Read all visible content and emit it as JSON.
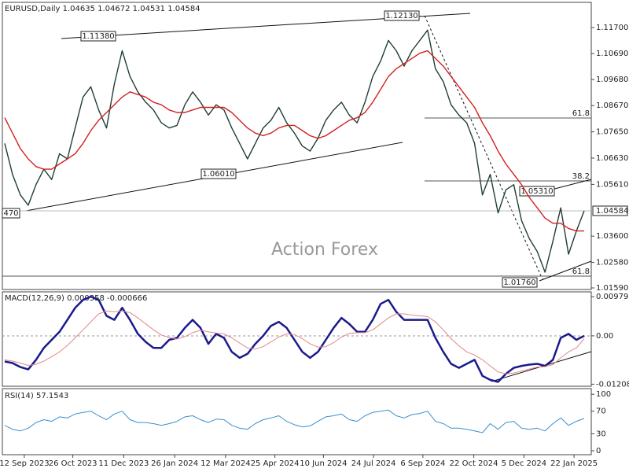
{
  "chart_data": [
    {
      "type": "line",
      "title": "EURUSD,Daily  1.04635 1.04672 1.04531 1.04584",
      "watermark": "Action Forex",
      "xlim": [
        -0.3,
        74.9
      ],
      "ylim": [
        1.01529,
        1.12677
      ],
      "yticks": [
        {
          "value": 1.117,
          "label": "1.11700"
        },
        {
          "value": 1.1069,
          "label": "1.10690"
        },
        {
          "value": 1.0968,
          "label": "1.09680"
        },
        {
          "value": 1.0867,
          "label": "1.08670"
        },
        {
          "value": 1.0765,
          "label": "1.07650"
        },
        {
          "value": 1.0663,
          "label": "1.06630"
        },
        {
          "value": 1.0561,
          "label": "1.05610"
        },
        {
          "value": 1.036,
          "label": "1.03600"
        },
        {
          "value": 1.0258,
          "label": "1.02580"
        },
        {
          "value": 1.0159,
          "label": "1.01590"
        }
      ],
      "last_price": {
        "value": 1.04584,
        "label": "1.04584"
      },
      "annotations": [
        "1.11380",
        "1.12130",
        "1.06010",
        "1.05310",
        "1.01760",
        "470",
        "61.8",
        "38.2",
        "61.8"
      ],
      "series": [
        {
          "color": "#1f3f33",
          "values": [
            1.072,
            1.06,
            1.052,
            1.048,
            1.056,
            1.062,
            1.058,
            1.068,
            1.066,
            1.078,
            1.09,
            1.094,
            1.085,
            1.078,
            1.095,
            1.108,
            1.098,
            1.092,
            1.088,
            1.085,
            1.08,
            1.078,
            1.079,
            1.087,
            1.092,
            1.088,
            1.083,
            1.087,
            1.085,
            1.078,
            1.072,
            1.066,
            1.072,
            1.078,
            1.081,
            1.086,
            1.08,
            1.076,
            1.071,
            1.069,
            1.074,
            1.081,
            1.085,
            1.088,
            1.083,
            1.08,
            1.088,
            1.098,
            1.104,
            1.112,
            1.108,
            1.102,
            1.108,
            1.112,
            1.116,
            1.101,
            1.096,
            1.087,
            1.083,
            1.08,
            1.072,
            1.052,
            1.06,
            1.045,
            1.054,
            1.056,
            1.042,
            1.035,
            1.03,
            1.022,
            1.034,
            1.047,
            1.029,
            1.038,
            1.04584
          ]
        },
        {
          "color": "#d42020",
          "values": [
            1.082,
            1.076,
            1.07,
            1.066,
            1.063,
            1.062,
            1.062,
            1.064,
            1.066,
            1.068,
            1.072,
            1.077,
            1.081,
            1.084,
            1.087,
            1.09,
            1.092,
            1.091,
            1.09,
            1.088,
            1.087,
            1.085,
            1.084,
            1.084,
            1.085,
            1.086,
            1.086,
            1.086,
            1.086,
            1.084,
            1.081,
            1.078,
            1.076,
            1.075,
            1.076,
            1.078,
            1.079,
            1.079,
            1.077,
            1.075,
            1.074,
            1.075,
            1.077,
            1.079,
            1.081,
            1.082,
            1.084,
            1.088,
            1.093,
            1.098,
            1.101,
            1.103,
            1.105,
            1.107,
            1.108,
            1.105,
            1.102,
            1.098,
            1.094,
            1.09,
            1.086,
            1.08,
            1.075,
            1.069,
            1.064,
            1.06,
            1.056,
            1.051,
            1.047,
            1.043,
            1.041,
            1.041,
            1.039,
            1.038,
            1.038
          ]
        }
      ]
    },
    {
      "type": "line",
      "title": "MACD(12,26,9) 0.000358 -0.000666",
      "xlim": [
        -0.3,
        74.9
      ],
      "ylim": [
        -0.0126,
        0.011
      ],
      "yticks": [
        0.009795,
        {
          "value": 0,
          "label": "0.00"
        },
        -0.012081
      ],
      "series": [
        {
          "color": "#1a1a8c",
          "width": 2.5,
          "values": [
            -0.0064,
            -0.0068,
            -0.0078,
            -0.0084,
            -0.006,
            -0.003,
            -0.001,
            0.001,
            0.004,
            0.007,
            0.009,
            0.0098,
            0.009,
            0.005,
            0.004,
            0.007,
            0.004,
            0.0005,
            -0.0015,
            -0.003,
            -0.003,
            -0.001,
            -0.0005,
            0.002,
            0.004,
            0.002,
            -0.002,
            0.0005,
            -0.0005,
            -0.004,
            -0.0055,
            -0.0045,
            -0.002,
            0.0,
            0.0025,
            0.0035,
            0.002,
            -0.001,
            -0.004,
            -0.0055,
            -0.004,
            -0.001,
            0.002,
            0.0045,
            0.003,
            0.001,
            0.001,
            0.004,
            0.008,
            0.009,
            0.006,
            0.004,
            0.004,
            0.004,
            0.004,
            -0.0005,
            -0.004,
            -0.007,
            -0.008,
            -0.007,
            -0.006,
            -0.01,
            -0.011,
            -0.0115,
            -0.0095,
            -0.008,
            -0.0075,
            -0.0072,
            -0.007,
            -0.0075,
            -0.006,
            -0.0005,
            0.0005,
            -0.001,
            0.0
          ]
        },
        {
          "color": "#e08a8a",
          "width": 1,
          "values": [
            -0.006,
            -0.0063,
            -0.0068,
            -0.0074,
            -0.0071,
            -0.0063,
            -0.0052,
            -0.004,
            -0.0024,
            -0.0005,
            0.0015,
            0.0035,
            0.0055,
            0.0062,
            0.006,
            0.0062,
            0.0058,
            0.0045,
            0.003,
            0.0015,
            0.0002,
            -0.0004,
            -0.0008,
            -0.0002,
            0.0008,
            0.0014,
            0.001,
            0.0007,
            0.0005,
            -0.0005,
            -0.0018,
            -0.003,
            -0.0033,
            -0.0027,
            -0.0015,
            -0.0003,
            0.0005,
            0.0003,
            -0.0007,
            -0.002,
            -0.0028,
            -0.0027,
            -0.0017,
            -0.0003,
            0.0006,
            0.0008,
            0.0008,
            0.0015,
            0.003,
            0.0045,
            0.0055,
            0.0055,
            0.0052,
            0.005,
            0.0048,
            0.0035,
            0.0015,
            -0.0007,
            -0.0025,
            -0.004,
            -0.0048,
            -0.006,
            -0.0075,
            -0.009,
            -0.0095,
            -0.0093,
            -0.0088,
            -0.0083,
            -0.0078,
            -0.0077,
            -0.0072,
            -0.0055,
            -0.004,
            -0.003,
            -0.0007
          ]
        }
      ]
    },
    {
      "type": "line",
      "title": "RSI(14) 57.1543",
      "xlim": [
        -0.3,
        74.9
      ],
      "ylim": [
        -7,
        110
      ],
      "yticks": [
        100,
        70,
        30,
        0
      ],
      "xticks": [
        {
          "value": 2.5,
          "label": "12 Sep 2023"
        },
        {
          "value": 8.7,
          "label": "26 Oct 2023"
        },
        {
          "value": 15.2,
          "label": "11 Dec 2023"
        },
        {
          "value": 21.7,
          "label": "26 Jan 2024"
        },
        {
          "value": 28.2,
          "label": "12 Mar 2024"
        },
        {
          "value": 34.5,
          "label": "25 Apr 2024"
        },
        {
          "value": 40.7,
          "label": "10 Jun 2024"
        },
        {
          "value": 47.1,
          "label": "24 Jul 2024"
        },
        {
          "value": 53.4,
          "label": "6 Sep 2024"
        },
        {
          "value": 59.9,
          "label": "22 Oct 2024"
        },
        {
          "value": 66.3,
          "label": "5 Dec 2024"
        },
        {
          "value": 72.7,
          "label": "22 Jan 2025"
        }
      ],
      "series": [
        {
          "color": "#3a8fd0",
          "width": 1,
          "values": [
            45,
            38,
            35,
            40,
            50,
            55,
            52,
            60,
            58,
            65,
            68,
            70,
            62,
            55,
            65,
            70,
            55,
            50,
            50,
            48,
            45,
            48,
            52,
            60,
            62,
            55,
            50,
            56,
            55,
            45,
            40,
            38,
            48,
            55,
            58,
            62,
            52,
            46,
            42,
            44,
            52,
            60,
            62,
            65,
            55,
            52,
            62,
            68,
            70,
            72,
            62,
            58,
            64,
            66,
            70,
            52,
            48,
            40,
            40,
            38,
            35,
            32,
            48,
            38,
            50,
            52,
            40,
            38,
            40,
            35,
            48,
            58,
            45,
            52,
            57.1543
          ]
        }
      ]
    }
  ]
}
